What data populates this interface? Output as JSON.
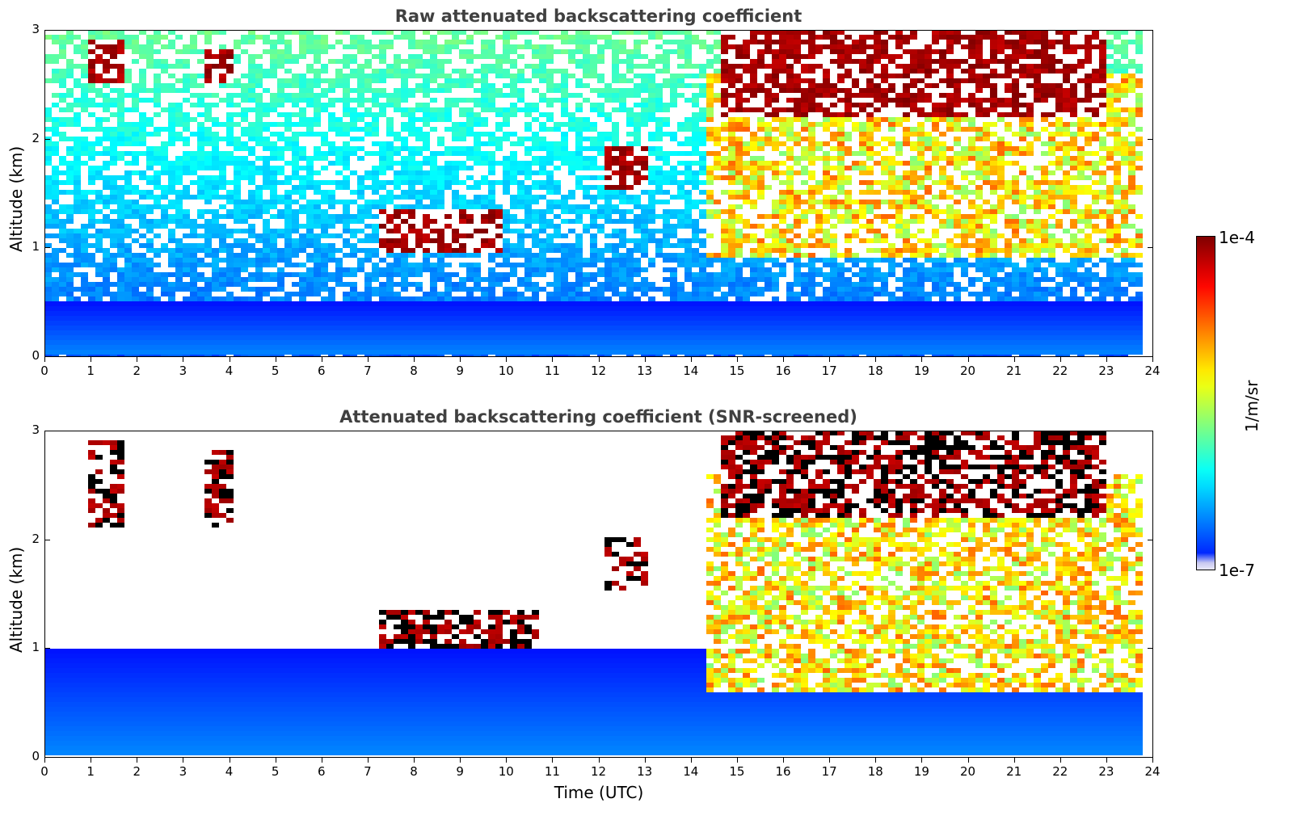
{
  "figure": {
    "panels": [
      {
        "title": "Raw attenuated backscattering coefficient",
        "ylabel": "Altitude (km)",
        "xlabel": ""
      },
      {
        "title": "Attenuated backscattering coefficient (SNR-screened)",
        "ylabel": "Altitude (km)",
        "xlabel": "Time (UTC)"
      }
    ],
    "colorbar": {
      "top_label": "1e-4",
      "bottom_label": "1e-7",
      "unit": "1/m/sr",
      "colormap": "jet"
    }
  },
  "chart_data": [
    {
      "type": "heatmap",
      "title": "Raw attenuated backscattering coefficient",
      "xlabel": "",
      "ylabel": "Altitude (km)",
      "x_ticks": [
        "0",
        "1",
        "2",
        "3",
        "4",
        "5",
        "6",
        "7",
        "8",
        "9",
        "10",
        "11",
        "12",
        "13",
        "14",
        "15",
        "16",
        "17",
        "18",
        "19",
        "20",
        "21",
        "22",
        "23",
        "24"
      ],
      "y_ticks": [
        "0",
        "1",
        "2",
        "3"
      ],
      "xlim": [
        0,
        24
      ],
      "ylim": [
        0,
        3
      ],
      "colorbar": {
        "min": "1e-7",
        "max": "1e-4",
        "unit": "1/m/sr",
        "scale": "log",
        "colormap": "jet"
      },
      "features": [
        {
          "name": "boundary layer",
          "x_range": [
            0,
            23.8
          ],
          "y_range": [
            0,
            0.5
          ],
          "level": "low"
        },
        {
          "name": "cloud",
          "x_range": [
            1.0,
            1.7
          ],
          "y_range": [
            2.5,
            2.9
          ],
          "level": "high"
        },
        {
          "name": "cloud",
          "x_range": [
            3.5,
            4.1
          ],
          "y_range": [
            2.5,
            2.8
          ],
          "level": "high"
        },
        {
          "name": "cloud",
          "x_range": [
            7.2,
            9.9
          ],
          "y_range": [
            0.95,
            1.35
          ],
          "level": "high"
        },
        {
          "name": "cloud",
          "x_range": [
            12.1,
            13.1
          ],
          "y_range": [
            1.55,
            1.95
          ],
          "level": "high"
        },
        {
          "name": "cloud deck",
          "x_range": [
            14.7,
            23.0
          ],
          "y_range": [
            2.2,
            3.0
          ],
          "level": "high"
        },
        {
          "name": "precipitation",
          "x_range": [
            14.4,
            23.8
          ],
          "y_range": [
            0.9,
            2.6
          ],
          "level": "medium"
        }
      ]
    },
    {
      "type": "heatmap",
      "title": "Attenuated backscattering coefficient (SNR-screened)",
      "xlabel": "Time (UTC)",
      "ylabel": "Altitude (km)",
      "x_ticks": [
        "0",
        "1",
        "2",
        "3",
        "4",
        "5",
        "6",
        "7",
        "8",
        "9",
        "10",
        "11",
        "12",
        "13",
        "14",
        "15",
        "16",
        "17",
        "18",
        "19",
        "20",
        "21",
        "22",
        "23",
        "24"
      ],
      "y_ticks": [
        "0",
        "1",
        "2",
        "3"
      ],
      "xlim": [
        0,
        24
      ],
      "ylim": [
        0,
        3
      ],
      "colorbar": {
        "min": "1e-7",
        "max": "1e-4",
        "unit": "1/m/sr",
        "scale": "log",
        "colormap": "jet"
      },
      "features": [
        {
          "name": "boundary layer",
          "x_range": [
            0,
            23.8
          ],
          "y_range": [
            0,
            1.0
          ],
          "level": "low"
        },
        {
          "name": "cloud",
          "x_range": [
            1.0,
            1.7
          ],
          "y_range": [
            2.1,
            2.9
          ],
          "level": "high"
        },
        {
          "name": "cloud",
          "x_range": [
            3.5,
            4.1
          ],
          "y_range": [
            2.1,
            2.8
          ],
          "level": "high"
        },
        {
          "name": "cloud",
          "x_range": [
            7.2,
            10.7
          ],
          "y_range": [
            1.0,
            1.35
          ],
          "level": "high"
        },
        {
          "name": "cloud",
          "x_range": [
            12.1,
            13.1
          ],
          "y_range": [
            1.55,
            2.0
          ],
          "level": "high"
        },
        {
          "name": "cloud deck",
          "x_range": [
            14.7,
            23.0
          ],
          "y_range": [
            2.2,
            3.0
          ],
          "level": "high"
        },
        {
          "name": "precipitation",
          "x_range": [
            14.4,
            23.8
          ],
          "y_range": [
            0.6,
            2.6
          ],
          "level": "medium"
        }
      ]
    }
  ]
}
